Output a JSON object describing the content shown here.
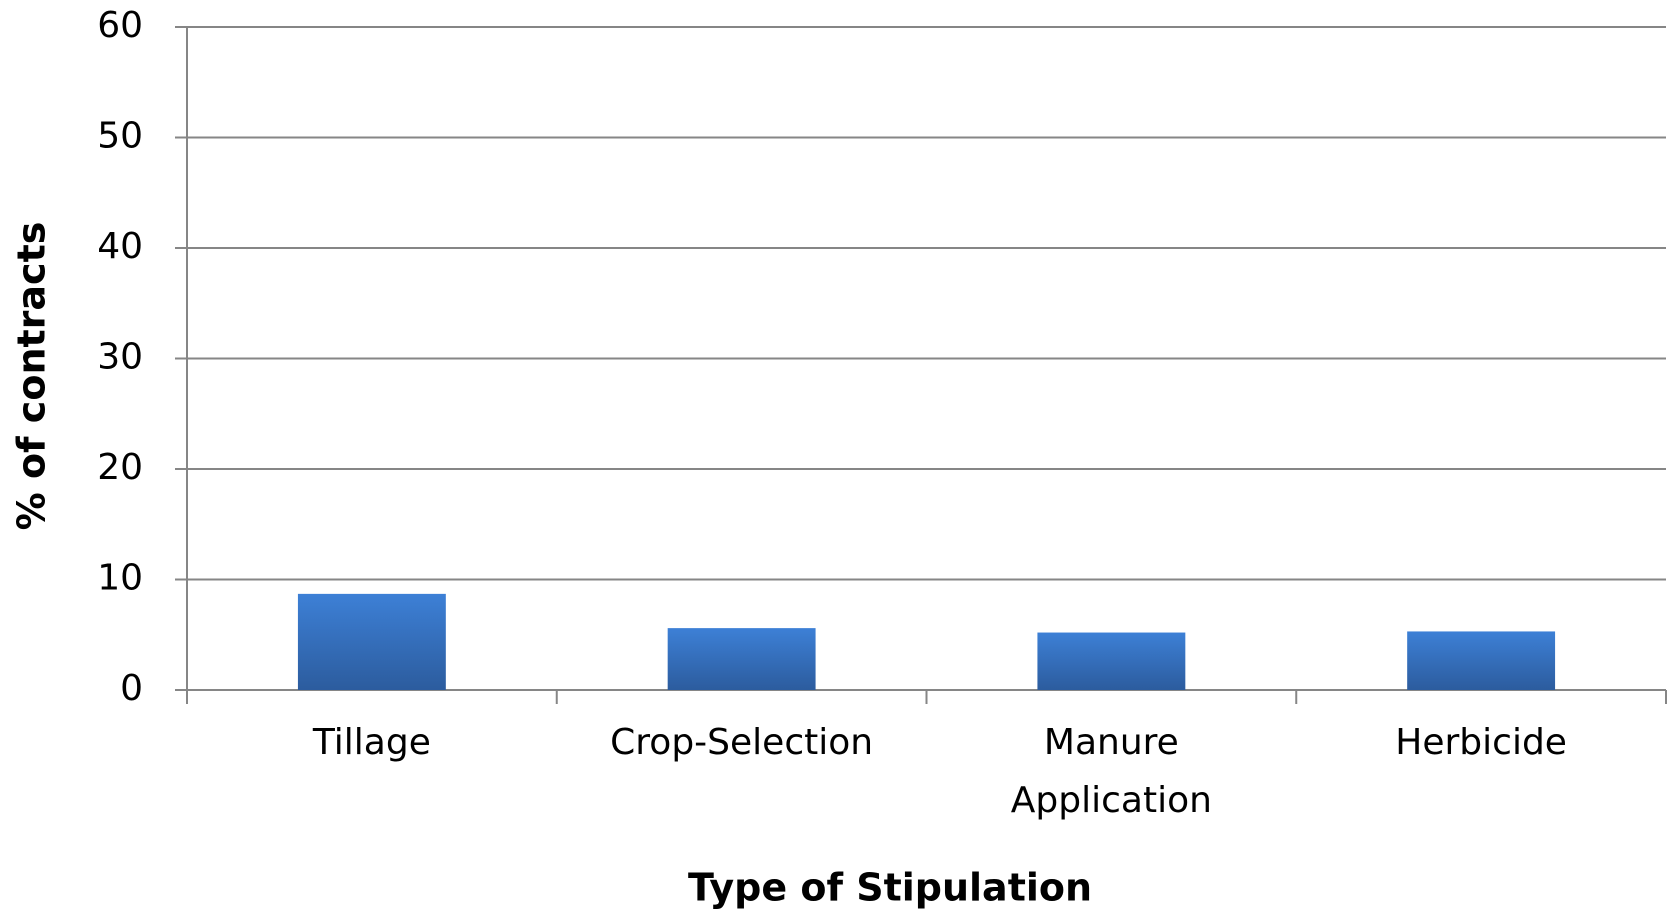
{
  "chart_data": {
    "type": "bar",
    "categories": [
      "Tillage",
      "Crop-Selection",
      "Manure Application",
      "Herbicide"
    ],
    "values": [
      8.7,
      5.6,
      5.2,
      5.3
    ],
    "color": "#3a78cc",
    "ylim": [
      0,
      60
    ],
    "yticks": [
      0,
      10,
      20,
      30,
      40,
      50,
      60
    ],
    "grid": true,
    "xlabel": "Type of Stipulation",
    "ylabel": "% of contracts"
  }
}
